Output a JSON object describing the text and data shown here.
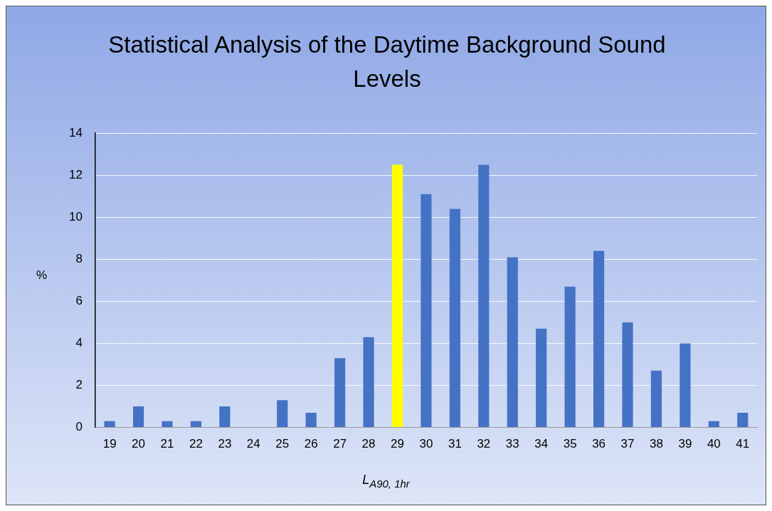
{
  "chart_data": {
    "type": "bar",
    "title": "Statistical Analysis of the Daytime Background Sound Levels",
    "xlabel": "L$_{A90, 1hr}$",
    "ylabel": "%",
    "categories": [
      "19",
      "20",
      "21",
      "22",
      "23",
      "24",
      "25",
      "26",
      "27",
      "28",
      "29",
      "30",
      "31",
      "32",
      "33",
      "34",
      "35",
      "36",
      "37",
      "38",
      "39",
      "40",
      "41"
    ],
    "values": [
      0.3,
      1.0,
      0.3,
      0.3,
      1.0,
      0,
      1.3,
      0.7,
      3.3,
      4.3,
      12.5,
      11.1,
      10.4,
      12.5,
      8.1,
      4.7,
      6.7,
      8.4,
      5.0,
      2.7,
      4.0,
      0.3,
      0.7
    ],
    "colors": [
      "#4472c4",
      "#4472c4",
      "#4472c4",
      "#4472c4",
      "#4472c4",
      "#4472c4",
      "#4472c4",
      "#4472c4",
      "#4472c4",
      "#4472c4",
      "#ffff00",
      "#4472c4",
      "#4472c4",
      "#4472c4",
      "#4472c4",
      "#4472c4",
      "#4472c4",
      "#4472c4",
      "#4472c4",
      "#4472c4",
      "#4472c4",
      "#4472c4",
      "#4472c4"
    ],
    "ylim": [
      0,
      14
    ],
    "yticks": [
      0,
      2,
      4,
      6,
      8,
      10,
      12,
      14
    ],
    "grid": "y"
  }
}
